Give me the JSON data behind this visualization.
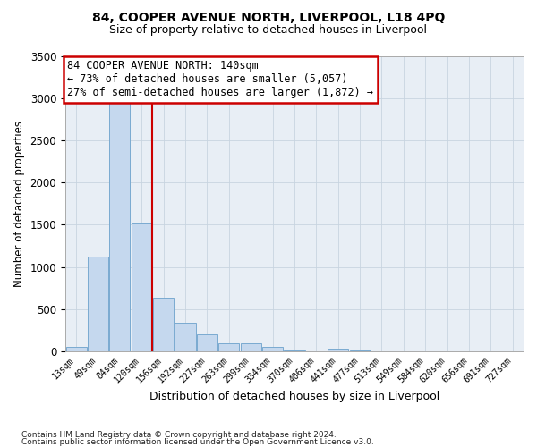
{
  "title": "84, COOPER AVENUE NORTH, LIVERPOOL, L18 4PQ",
  "subtitle": "Size of property relative to detached houses in Liverpool",
  "xlabel": "Distribution of detached houses by size in Liverpool",
  "ylabel": "Number of detached properties",
  "footer_line1": "Contains HM Land Registry data © Crown copyright and database right 2024.",
  "footer_line2": "Contains public sector information licensed under the Open Government Licence v3.0.",
  "categories": [
    "13sqm",
    "49sqm",
    "84sqm",
    "120sqm",
    "156sqm",
    "192sqm",
    "227sqm",
    "263sqm",
    "299sqm",
    "334sqm",
    "370sqm",
    "406sqm",
    "441sqm",
    "477sqm",
    "513sqm",
    "549sqm",
    "584sqm",
    "620sqm",
    "656sqm",
    "691sqm",
    "727sqm"
  ],
  "values": [
    50,
    1120,
    2950,
    1520,
    640,
    340,
    200,
    100,
    95,
    50,
    10,
    5,
    30,
    10,
    5,
    2,
    2,
    2,
    2,
    2,
    2
  ],
  "bar_color": "#c5d8ee",
  "bar_edge_color": "#7aaad0",
  "red_line_x": 3.5,
  "annotation_line1": "84 COOPER AVENUE NORTH: 140sqm",
  "annotation_line2": "← 73% of detached houses are smaller (5,057)",
  "annotation_line3": "27% of semi-detached houses are larger (1,872) →",
  "ylim_max": 3500,
  "yticks": [
    0,
    500,
    1000,
    1500,
    2000,
    2500,
    3000,
    3500
  ],
  "bg_color": "#ffffff",
  "axes_bg": "#e8eef5",
  "grid_color": "#c8d4e0"
}
